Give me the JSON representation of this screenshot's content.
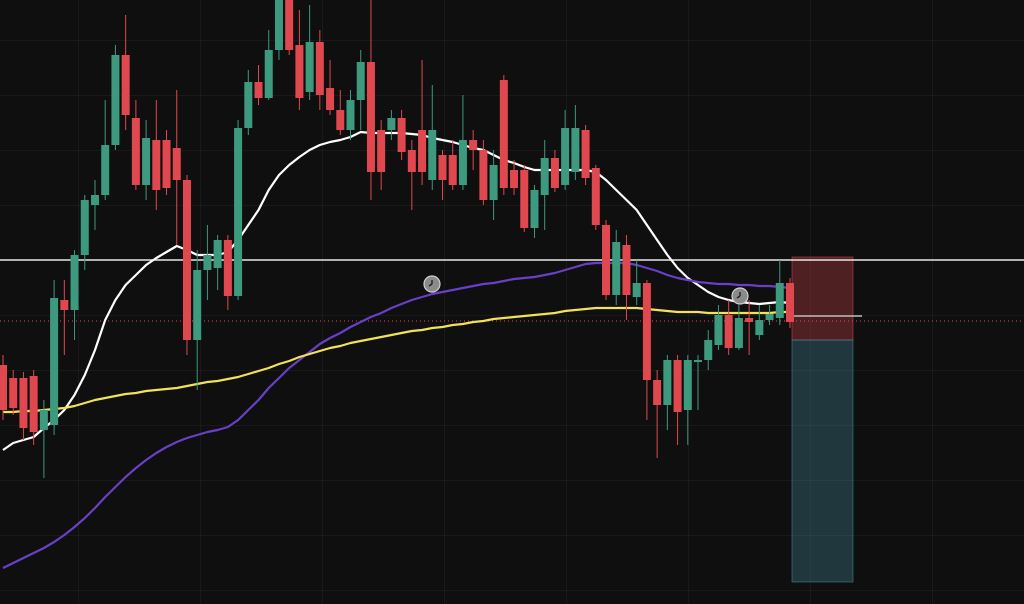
{
  "chart_data": {
    "type": "candlestick",
    "ylim": [
      0,
      604
    ],
    "up_color": "#3d9a7e",
    "down_color": "#e0484f",
    "candles": {
      "open": [
        239,
        226,
        226,
        228,
        174,
        179,
        304,
        294,
        349,
        399,
        409,
        459,
        549,
        486,
        419,
        464,
        464,
        456,
        424,
        264,
        334,
        336,
        364,
        308,
        476,
        522,
        506,
        554,
        604,
        559,
        512,
        562,
        516,
        494,
        474,
        504,
        542,
        474,
        474,
        486,
        454,
        474,
        424,
        449,
        449,
        419,
        464,
        454,
        404,
        524,
        434,
        434,
        376,
        409,
        446,
        419,
        432,
        474,
        436,
        379,
        309,
        359,
        307,
        321,
        224,
        199,
        244,
        194,
        242,
        244,
        259,
        289,
        256,
        286,
        269,
        284,
        286,
        321
      ],
      "high": [
        249,
        234,
        232,
        234,
        204,
        324,
        324,
        354,
        409,
        424,
        504,
        559,
        589,
        504,
        484,
        504,
        474,
        514,
        429,
        354,
        379,
        369,
        369,
        484,
        534,
        539,
        574,
        604,
        604,
        594,
        599,
        574,
        544,
        514,
        514,
        554,
        604,
        484,
        494,
        494,
        464,
        544,
        519,
        454,
        464,
        509,
        474,
        464,
        454,
        529,
        444,
        439,
        419,
        464,
        454,
        494,
        499,
        479,
        439,
        384,
        374,
        369,
        344,
        324,
        234,
        249,
        249,
        249,
        249,
        274,
        299,
        304,
        299,
        304,
        299,
        299,
        344,
        326
      ],
      "low": [
        184,
        189,
        164,
        159,
        126,
        169,
        249,
        264,
        334,
        374,
        404,
        454,
        474,
        414,
        404,
        394,
        409,
        359,
        249,
        214,
        304,
        314,
        294,
        304,
        469,
        499,
        504,
        544,
        549,
        494,
        504,
        494,
        489,
        469,
        464,
        474,
        404,
        414,
        464,
        444,
        394,
        419,
        414,
        404,
        414,
        414,
        434,
        399,
        384,
        409,
        409,
        372,
        366,
        374,
        412,
        414,
        424,
        419,
        374,
        304,
        299,
        284,
        299,
        184,
        146,
        174,
        159,
        159,
        194,
        234,
        254,
        249,
        254,
        249,
        264,
        279,
        279,
        276
      ],
      "close": [
        194,
        196,
        176,
        172,
        194,
        306,
        294,
        349,
        404,
        409,
        459,
        549,
        489,
        419,
        466,
        414,
        416,
        424,
        264,
        334,
        349,
        364,
        308,
        476,
        522,
        506,
        554,
        604,
        554,
        506,
        562,
        509,
        494,
        474,
        504,
        542,
        432,
        432,
        486,
        452,
        432,
        432,
        474,
        424,
        419,
        464,
        454,
        404,
        439,
        416,
        416,
        376,
        414,
        446,
        416,
        476,
        476,
        426,
        379,
        309,
        362,
        309,
        321,
        224,
        199,
        244,
        192,
        244,
        244,
        264,
        289,
        256,
        286,
        282,
        284,
        290,
        321,
        282
      ]
    },
    "series": [
      {
        "color": "#ffffff",
        "values": [
          154,
          161,
          164,
          167,
          176,
          184,
          194,
          209,
          229,
          254,
          284,
          304,
          319,
          329,
          339,
          346,
          352,
          358,
          354,
          349,
          349,
          349,
          352,
          364,
          379,
          394,
          414,
          429,
          439,
          447,
          454,
          459,
          462,
          464,
          467,
          472,
          471,
          471,
          471,
          471,
          470,
          469,
          466,
          464,
          462,
          459,
          456,
          454,
          449,
          444,
          441,
          437,
          434,
          434,
          434,
          434,
          434,
          434,
          432,
          424,
          414,
          404,
          394,
          379,
          364,
          349,
          336,
          326,
          319,
          312,
          307,
          304,
          302,
          301,
          300,
          301,
          302,
          301
        ]
      },
      {
        "color": "#6a3fc8",
        "values": [
          36,
          41,
          46,
          51,
          56,
          62,
          69,
          77,
          86,
          96,
          107,
          117,
          127,
          136,
          144,
          151,
          157,
          162,
          166,
          169,
          172,
          174,
          177,
          184,
          194,
          204,
          216,
          226,
          236,
          244,
          252,
          260,
          266,
          271,
          277,
          282,
          287,
          291,
          296,
          300,
          304,
          307,
          310,
          312,
          314,
          316,
          318,
          320,
          321,
          323,
          325,
          326,
          327,
          329,
          331,
          334,
          337,
          340,
          341,
          341,
          341,
          341,
          339,
          336,
          333,
          329,
          326,
          324,
          322,
          321,
          320,
          320,
          319,
          319,
          318,
          318,
          317,
          316
        ]
      },
      {
        "color": "#f2e25a",
        "values": [
          192,
          192,
          193,
          193,
          194,
          195,
          196,
          198,
          201,
          204,
          206,
          208,
          210,
          211,
          213,
          214,
          215,
          216,
          218,
          220,
          222,
          223,
          225,
          227,
          230,
          233,
          236,
          240,
          243,
          247,
          250,
          253,
          256,
          258,
          261,
          263,
          265,
          267,
          269,
          271,
          273,
          274,
          276,
          277,
          279,
          280,
          282,
          283,
          285,
          286,
          287,
          288,
          289,
          290,
          291,
          293,
          294,
          295,
          296,
          296,
          296,
          296,
          296,
          295,
          294,
          293,
          292,
          292,
          292,
          291,
          291,
          291,
          291,
          291,
          291,
          291,
          292,
          292
        ]
      }
    ],
    "level_line": 344,
    "price_line": 283,
    "last_line": 288,
    "position": {
      "stop": 347,
      "entry": 264,
      "target": 22
    }
  }
}
